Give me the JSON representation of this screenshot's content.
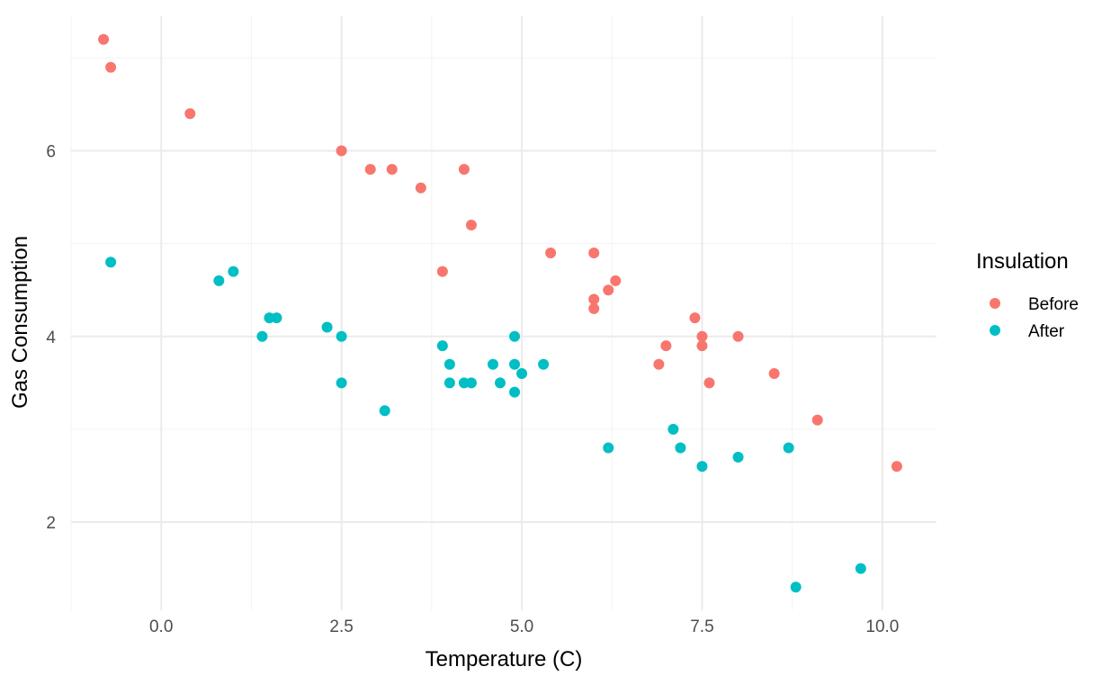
{
  "chart_data": {
    "type": "scatter",
    "xlabel": "Temperature (C)",
    "ylabel": "Gas Consumption",
    "xlim": [
      -1.25,
      10.75
    ],
    "ylim": [
      1.05,
      7.45
    ],
    "x_ticks": [
      0.0,
      2.5,
      5.0,
      7.5,
      10.0
    ],
    "x_tick_labels": [
      "0.0",
      "2.5",
      "5.0",
      "7.5",
      "10.0"
    ],
    "x_minor_ticks": [
      -1.25,
      1.25,
      3.75,
      6.25,
      8.75
    ],
    "y_ticks": [
      2,
      4,
      6
    ],
    "y_tick_labels": [
      "2",
      "4",
      "6"
    ],
    "y_minor_ticks": [
      3,
      5,
      7
    ],
    "grid": true,
    "legend": {
      "title": "Insulation",
      "position": "right"
    },
    "series": [
      {
        "name": "Before",
        "color": "#F8766D",
        "points": [
          [
            -0.8,
            7.2
          ],
          [
            -0.7,
            6.9
          ],
          [
            0.4,
            6.4
          ],
          [
            2.5,
            6.0
          ],
          [
            2.9,
            5.8
          ],
          [
            3.2,
            5.8
          ],
          [
            3.6,
            5.6
          ],
          [
            3.9,
            4.7
          ],
          [
            4.2,
            5.8
          ],
          [
            4.3,
            5.2
          ],
          [
            5.4,
            4.9
          ],
          [
            6.0,
            4.9
          ],
          [
            6.0,
            4.4
          ],
          [
            6.0,
            4.3
          ],
          [
            6.2,
            4.5
          ],
          [
            6.3,
            4.6
          ],
          [
            6.9,
            3.7
          ],
          [
            7.0,
            3.9
          ],
          [
            7.4,
            4.2
          ],
          [
            7.5,
            4.0
          ],
          [
            7.5,
            3.9
          ],
          [
            7.6,
            3.5
          ],
          [
            8.0,
            4.0
          ],
          [
            8.5,
            3.6
          ],
          [
            9.1,
            3.1
          ],
          [
            10.2,
            2.6
          ]
        ]
      },
      {
        "name": "After",
        "color": "#00BFC4",
        "points": [
          [
            -0.7,
            4.8
          ],
          [
            0.8,
            4.6
          ],
          [
            1.0,
            4.7
          ],
          [
            1.4,
            4.0
          ],
          [
            1.5,
            4.2
          ],
          [
            1.6,
            4.2
          ],
          [
            2.3,
            4.1
          ],
          [
            2.5,
            4.0
          ],
          [
            2.5,
            3.5
          ],
          [
            3.1,
            3.2
          ],
          [
            3.9,
            3.9
          ],
          [
            4.0,
            3.7
          ],
          [
            4.0,
            3.5
          ],
          [
            4.2,
            3.5
          ],
          [
            4.3,
            3.5
          ],
          [
            4.6,
            3.7
          ],
          [
            4.7,
            3.5
          ],
          [
            4.9,
            4.0
          ],
          [
            4.9,
            3.7
          ],
          [
            4.9,
            3.4
          ],
          [
            5.0,
            3.6
          ],
          [
            5.3,
            3.7
          ],
          [
            6.2,
            2.8
          ],
          [
            7.1,
            3.0
          ],
          [
            7.2,
            2.8
          ],
          [
            7.5,
            2.6
          ],
          [
            8.0,
            2.7
          ],
          [
            8.7,
            2.8
          ],
          [
            8.8,
            1.3
          ],
          [
            9.7,
            1.5
          ]
        ]
      }
    ]
  }
}
